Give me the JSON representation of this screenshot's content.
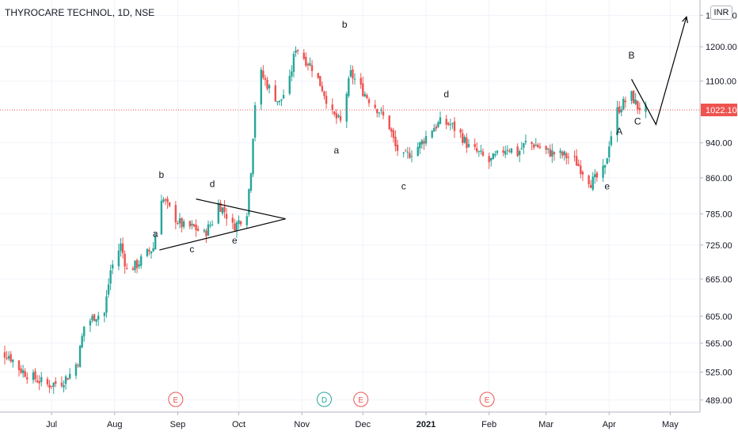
{
  "header": {
    "symbol_title": "THYROCARE TECHNOL, 1D, NSE",
    "currency_badge": "INR"
  },
  "colors": {
    "up": "#26a69a",
    "down": "#ef5350",
    "text": "#131722",
    "grid": "#f0f3fa",
    "axis": "#b2b5be",
    "price_line": "#ef5350"
  },
  "chart_data": {
    "type": "candlestick",
    "title": "THYROCARE TECHNOL, 1D, NSE",
    "y_scale": "log",
    "ylim": [
      480,
      1330
    ],
    "y_ticks": [
      489,
      525,
      565,
      605,
      665,
      725,
      785,
      860,
      940,
      1022.1,
      1100,
      1200,
      1300
    ],
    "y_tick_labels": [
      "489.00",
      "525.00",
      "565.00",
      "605.00",
      "665.00",
      "725.00",
      "785.00",
      "860.00",
      "940.00",
      "1022.10",
      "1100.00",
      "1200.00",
      "1300.00"
    ],
    "x_range": [
      "2020-06-01",
      "2021-05-31"
    ],
    "x_ticks": [
      {
        "date": "2020-07-01",
        "label": "Jul"
      },
      {
        "date": "2020-08-01",
        "label": "Aug"
      },
      {
        "date": "2020-09-01",
        "label": "Sep"
      },
      {
        "date": "2020-10-01",
        "label": "Oct"
      },
      {
        "date": "2020-11-01",
        "label": "Nov"
      },
      {
        "date": "2020-12-01",
        "label": "Dec"
      },
      {
        "date": "2021-01-01",
        "label": "2021"
      },
      {
        "date": "2021-02-01",
        "label": "Feb"
      },
      {
        "date": "2021-03-01",
        "label": "Mar"
      },
      {
        "date": "2021-04-01",
        "label": "Apr"
      },
      {
        "date": "2021-05-01",
        "label": "May"
      }
    ],
    "last_price": 1022.1,
    "last_price_label": "1022.10",
    "price_path": [
      {
        "date": "2020-06-01",
        "close": 540
      },
      {
        "date": "2020-06-05",
        "close": 552
      },
      {
        "date": "2020-06-10",
        "close": 548
      },
      {
        "date": "2020-06-15",
        "close": 530
      },
      {
        "date": "2020-06-19",
        "close": 522
      },
      {
        "date": "2020-06-24",
        "close": 515
      },
      {
        "date": "2020-06-29",
        "close": 508
      },
      {
        "date": "2020-07-06",
        "close": 512
      },
      {
        "date": "2020-07-10",
        "close": 522
      },
      {
        "date": "2020-07-14",
        "close": 540
      },
      {
        "date": "2020-07-17",
        "close": 590
      },
      {
        "date": "2020-07-22",
        "close": 605
      },
      {
        "date": "2020-07-27",
        "close": 610
      },
      {
        "date": "2020-07-30",
        "close": 680
      },
      {
        "date": "2020-08-04",
        "close": 725
      },
      {
        "date": "2020-08-07",
        "close": 680
      },
      {
        "date": "2020-08-12",
        "close": 690
      },
      {
        "date": "2020-08-17",
        "close": 710
      },
      {
        "date": "2020-08-20",
        "close": 720
      },
      {
        "date": "2020-08-24",
        "close": 820
      },
      {
        "date": "2020-08-27",
        "close": 800
      },
      {
        "date": "2020-09-01",
        "close": 770
      },
      {
        "date": "2020-09-04",
        "close": 760
      },
      {
        "date": "2020-09-09",
        "close": 758
      },
      {
        "date": "2020-09-14",
        "close": 745
      },
      {
        "date": "2020-09-18",
        "close": 770
      },
      {
        "date": "2020-09-21",
        "close": 805
      },
      {
        "date": "2020-09-24",
        "close": 790
      },
      {
        "date": "2020-09-28",
        "close": 760
      },
      {
        "date": "2020-09-30",
        "close": 765
      },
      {
        "date": "2020-10-05",
        "close": 790
      },
      {
        "date": "2020-10-07",
        "close": 880
      },
      {
        "date": "2020-10-09",
        "close": 1040
      },
      {
        "date": "2020-10-12",
        "close": 1120
      },
      {
        "date": "2020-10-16",
        "close": 1080
      },
      {
        "date": "2020-10-21",
        "close": 1040
      },
      {
        "date": "2020-10-26",
        "close": 1100
      },
      {
        "date": "2020-10-29",
        "close": 1200
      },
      {
        "date": "2020-11-03",
        "close": 1160
      },
      {
        "date": "2020-11-06",
        "close": 1140
      },
      {
        "date": "2020-11-11",
        "close": 1080
      },
      {
        "date": "2020-11-16",
        "close": 1010
      },
      {
        "date": "2020-11-20",
        "close": 990
      },
      {
        "date": "2020-11-25",
        "close": 1120
      },
      {
        "date": "2020-11-30",
        "close": 1080
      },
      {
        "date": "2020-12-04",
        "close": 1050
      },
      {
        "date": "2020-12-09",
        "close": 1020
      },
      {
        "date": "2020-12-14",
        "close": 980
      },
      {
        "date": "2020-12-17",
        "close": 930
      },
      {
        "date": "2020-12-21",
        "close": 905
      },
      {
        "date": "2020-12-24",
        "close": 915
      },
      {
        "date": "2020-12-29",
        "close": 935
      },
      {
        "date": "2021-01-04",
        "close": 975
      },
      {
        "date": "2021-01-08",
        "close": 990
      },
      {
        "date": "2021-01-13",
        "close": 985
      },
      {
        "date": "2021-01-18",
        "close": 960
      },
      {
        "date": "2021-01-22",
        "close": 930
      },
      {
        "date": "2021-01-27",
        "close": 915
      },
      {
        "date": "2021-02-01",
        "close": 895
      },
      {
        "date": "2021-02-05",
        "close": 910
      },
      {
        "date": "2021-02-10",
        "close": 930
      },
      {
        "date": "2021-02-15",
        "close": 915
      },
      {
        "date": "2021-02-19",
        "close": 940
      },
      {
        "date": "2021-02-24",
        "close": 935
      },
      {
        "date": "2021-03-01",
        "close": 920
      },
      {
        "date": "2021-03-05",
        "close": 915
      },
      {
        "date": "2021-03-10",
        "close": 910
      },
      {
        "date": "2021-03-15",
        "close": 900
      },
      {
        "date": "2021-03-19",
        "close": 875
      },
      {
        "date": "2021-03-23",
        "close": 850
      },
      {
        "date": "2021-03-26",
        "close": 860
      },
      {
        "date": "2021-03-30",
        "close": 880
      },
      {
        "date": "2021-04-01",
        "close": 940
      },
      {
        "date": "2021-04-05",
        "close": 1020
      },
      {
        "date": "2021-04-08",
        "close": 1040
      },
      {
        "date": "2021-04-12",
        "close": 1060
      },
      {
        "date": "2021-04-15",
        "close": 1030
      },
      {
        "date": "2021-04-19",
        "close": 1022.1
      }
    ],
    "wave_labels": [
      {
        "text": "b",
        "date": "2020-08-24",
        "price": 860
      },
      {
        "text": "a",
        "date": "2020-08-21",
        "price": 740
      },
      {
        "text": "d",
        "date": "2020-09-18",
        "price": 840
      },
      {
        "text": "c",
        "date": "2020-09-08",
        "price": 712
      },
      {
        "text": "e",
        "date": "2020-09-29",
        "price": 728
      },
      {
        "text": "b",
        "date": "2020-11-22",
        "price": 1260
      },
      {
        "text": "a",
        "date": "2020-11-18",
        "price": 915
      },
      {
        "text": "c",
        "date": "2020-12-21",
        "price": 835
      },
      {
        "text": "d",
        "date": "2021-01-11",
        "price": 1055
      },
      {
        "text": "e",
        "date": "2021-03-31",
        "price": 835
      },
      {
        "text": "B",
        "date": "2021-04-12",
        "price": 1165
      },
      {
        "text": "A",
        "date": "2021-04-06",
        "price": 960
      },
      {
        "text": "C",
        "date": "2021-04-15",
        "price": 985
      }
    ],
    "drawings": [
      {
        "name": "triangle-upper-line",
        "points": [
          {
            "date": "2020-09-10",
            "price": 815
          },
          {
            "date": "2020-10-24",
            "price": 775
          }
        ]
      },
      {
        "name": "triangle-lower-line",
        "points": [
          {
            "date": "2020-08-23",
            "price": 716
          },
          {
            "date": "2020-10-24",
            "price": 775
          }
        ]
      },
      {
        "name": "projection-path",
        "points": [
          {
            "date": "2021-04-12",
            "price": 1105
          },
          {
            "date": "2021-04-24",
            "price": 985
          },
          {
            "date": "2021-05-09",
            "price": 1295
          }
        ]
      }
    ],
    "events": [
      {
        "label": "E",
        "date": "2020-06-01",
        "kind": "earnings"
      },
      {
        "label": "E",
        "date": "2020-08-31",
        "kind": "earnings"
      },
      {
        "label": "D",
        "date": "2020-11-12",
        "kind": "dividend"
      },
      {
        "label": "E",
        "date": "2020-11-30",
        "kind": "earnings"
      },
      {
        "label": "E",
        "date": "2021-01-31",
        "kind": "earnings"
      }
    ]
  }
}
